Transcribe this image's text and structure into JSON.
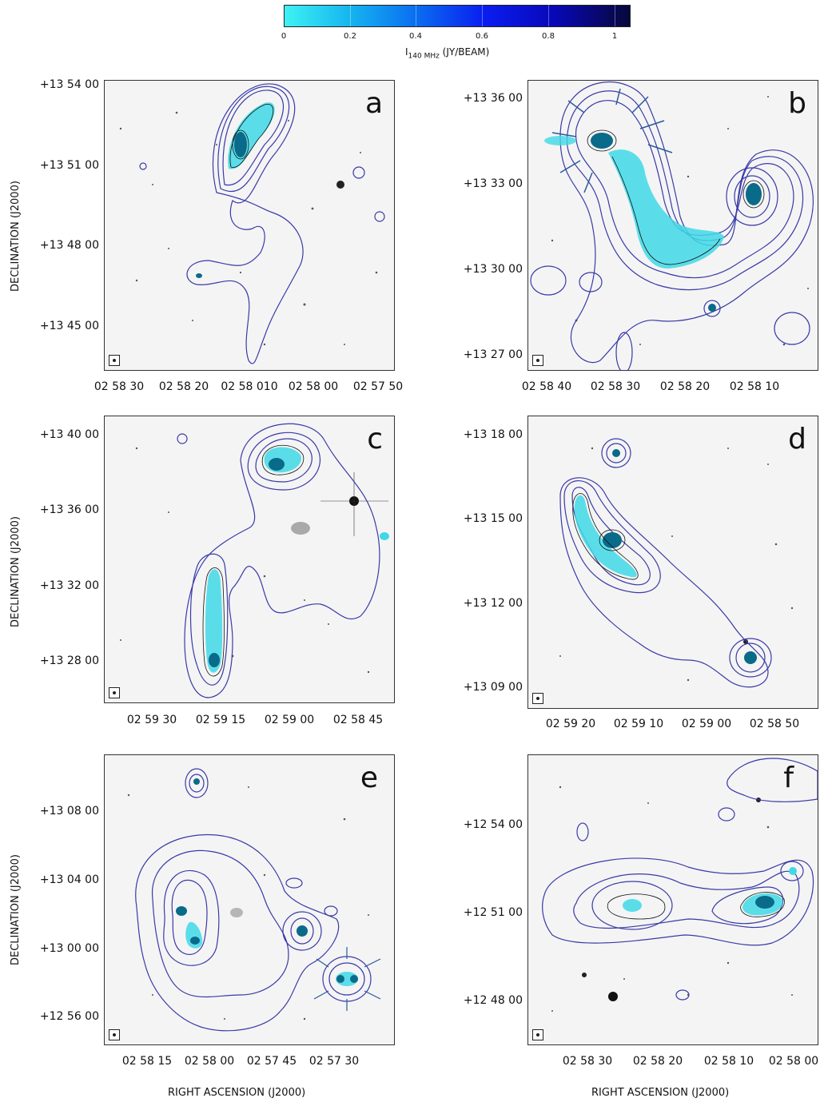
{
  "colorbar": {
    "ticks": [
      "0",
      "0.2",
      "0.4",
      "0.6",
      "0.8",
      "1"
    ],
    "title_prefix": "I",
    "title_sub": "140 MHz",
    "title_unit": "(JY/BEAM)"
  },
  "axes": {
    "ylabel": "DECLINATION (J2000)",
    "xlabel": "RIGHT ASCENSION (J2000)"
  },
  "panels": {
    "a": {
      "letter": "a",
      "dec_ticks": [
        "+13 54 00",
        "+13 51 00",
        "+13 48 00",
        "+13 45 00"
      ],
      "ra_ticks": [
        "02 58 30",
        "02 58 20",
        "02 58 010",
        "02 58 00",
        "02 57 50"
      ]
    },
    "b": {
      "letter": "b",
      "dec_ticks": [
        "+13 36 00",
        "+13 33 00",
        "+13 30 00",
        "+13 27 00"
      ],
      "ra_ticks": [
        "02 58 40",
        "02 58 30",
        "02 58 20",
        "02 58 10"
      ]
    },
    "c": {
      "letter": "c",
      "dec_ticks": [
        "+13 40 00",
        "+13 36 00",
        "+13 32 00",
        "+13 28 00"
      ],
      "ra_ticks": [
        "02 59 30",
        "02 59 15",
        "02 59 00",
        "02 58 45"
      ]
    },
    "d": {
      "letter": "d",
      "dec_ticks": [
        "+13 18 00",
        "+13 15 00",
        "+13 12 00",
        "+13 09 00"
      ],
      "ra_ticks": [
        "02 59 20",
        "02 59 10",
        "02 59 00",
        "02 58 50"
      ]
    },
    "e": {
      "letter": "e",
      "dec_ticks": [
        "+13 08 00",
        "+13 04 00",
        "+13 00 00",
        "+12 56 00"
      ],
      "ra_ticks": [
        "02 58 15",
        "02 58 00",
        "02 57 45",
        "02 57 30"
      ]
    },
    "f": {
      "letter": "f",
      "dec_ticks": [
        "+12 54 00",
        "+12 51 00",
        "+12 48 00"
      ],
      "ra_ticks": [
        "02 58 30",
        "02 58 20",
        "02 58 10",
        "02 58 00"
      ]
    }
  },
  "colors": {
    "contour_outer": "#3a3aa8",
    "contour_inner": "#111111",
    "emission": "#3fd8e6",
    "emission_dark": "#0a6a8a",
    "background": "#f4f4f4"
  }
}
